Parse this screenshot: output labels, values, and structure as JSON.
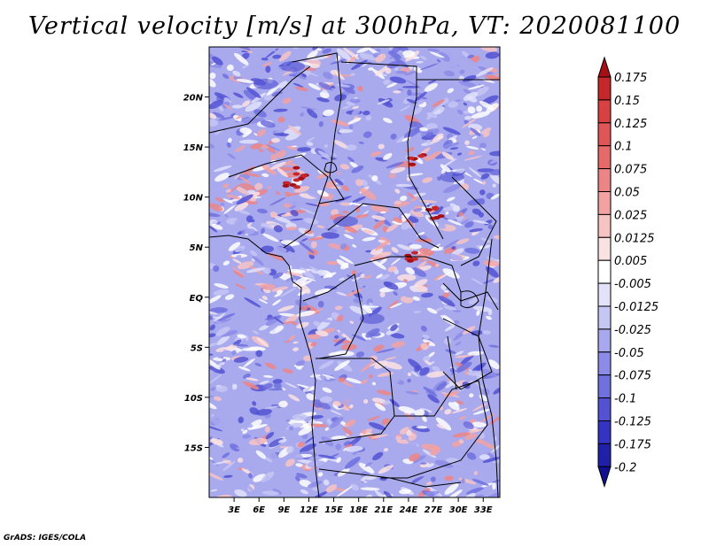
{
  "title": "Vertical velocity [m/s] at 300hPa, VT: 2020081100",
  "credit": "GrADS: IGES/COLA",
  "map": {
    "lon_range": [
      0,
      35
    ],
    "lat_range": [
      -20,
      25
    ],
    "lat_ticks": [
      {
        "value": 20,
        "label": "20N"
      },
      {
        "value": 15,
        "label": "15N"
      },
      {
        "value": 10,
        "label": "10N"
      },
      {
        "value": 5,
        "label": "5N"
      },
      {
        "value": 0,
        "label": "EQ"
      },
      {
        "value": -5,
        "label": "5S"
      },
      {
        "value": -10,
        "label": "10S"
      },
      {
        "value": -15,
        "label": "15S"
      }
    ],
    "lon_ticks": [
      {
        "value": 3,
        "label": "3E"
      },
      {
        "value": 6,
        "label": "6E"
      },
      {
        "value": 9,
        "label": "9E"
      },
      {
        "value": 12,
        "label": "12E"
      },
      {
        "value": 15,
        "label": "15E"
      },
      {
        "value": 18,
        "label": "18E"
      },
      {
        "value": 21,
        "label": "21E"
      },
      {
        "value": 24,
        "label": "24E"
      },
      {
        "value": 27,
        "label": "27E"
      },
      {
        "value": 30,
        "label": "30E"
      },
      {
        "value": 33,
        "label": "33E"
      }
    ]
  },
  "colorbar": {
    "levels": [
      "0.175",
      "0.15",
      "0.125",
      "0.1",
      "0.075",
      "0.05",
      "0.025",
      "0.0125",
      "0.005",
      "-0.005",
      "-0.0125",
      "-0.025",
      "-0.05",
      "-0.075",
      "-0.1",
      "-0.125",
      "-0.175",
      "-0.2"
    ],
    "colors": [
      "#a50f15",
      "#c4282a",
      "#d84141",
      "#e05555",
      "#e66a6a",
      "#ec8585",
      "#f2a2a2",
      "#f7c4c4",
      "#fbe2e2",
      "#ffffff",
      "#e2e2fb",
      "#c6c6f5",
      "#a8a8ee",
      "#8c8ce8",
      "#7070de",
      "#5252d2",
      "#3434c2",
      "#2020a8",
      "#101090"
    ]
  }
}
